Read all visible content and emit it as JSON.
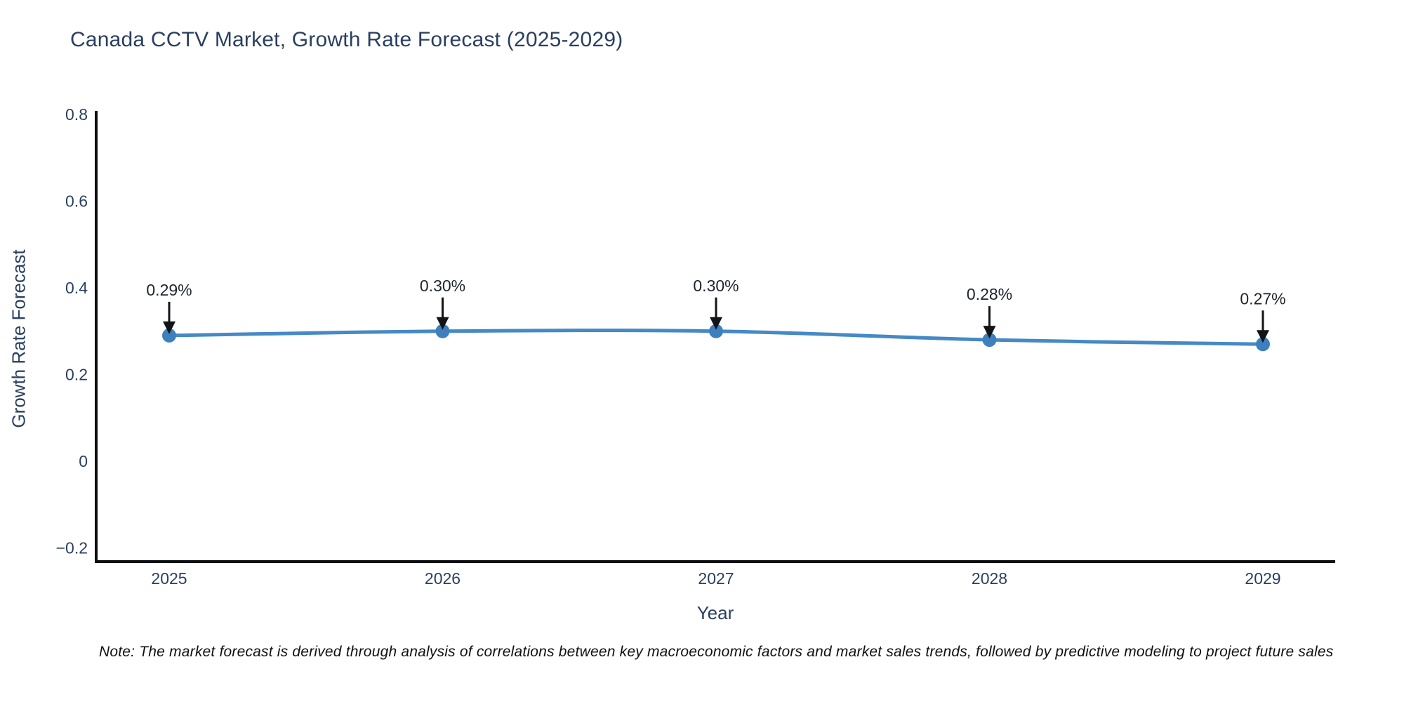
{
  "page": {
    "title": "Canada CCTV Market, Growth Rate Forecast (2025-2029)",
    "note": "Note: The market forecast is derived through analysis of correlations between key macroeconomic factors and market sales trends, followed by predictive modeling to project future sales"
  },
  "colors": {
    "background": "#ffffff",
    "title_text": "#2a3f5f",
    "tick_text": "#2a3f5f",
    "axis_line": "#0d0e12",
    "series_line": "#4589c5",
    "marker_fill": "#3e80bd",
    "arrow": "#121418",
    "annotation_text": "#1e242e",
    "note_text": "#111111"
  },
  "chart_data": {
    "type": "line",
    "title": "Canada CCTV Market, Growth Rate Forecast (2025-2029)",
    "x": [
      2025,
      2026,
      2027,
      2028,
      2029
    ],
    "categories": [
      "2025",
      "2026",
      "2027",
      "2028",
      "2029"
    ],
    "series": [
      {
        "name": "Growth Rate Forecast",
        "values": [
          0.29,
          0.3,
          0.3,
          0.28,
          0.27
        ],
        "point_labels": [
          "0.29%",
          "0.30%",
          "0.30%",
          "0.28%",
          "0.27%"
        ]
      }
    ],
    "xlabel": "Year",
    "ylabel": "Growth Rate Forecast",
    "ylim": [
      -0.233,
      0.8
    ],
    "yticks": [
      0.8,
      0.6,
      0.4,
      0.2,
      0,
      -0.2
    ],
    "ytick_labels": [
      "0.8",
      "0.6",
      "0.4",
      "0.2",
      "0",
      "−0.2"
    ],
    "grid": false,
    "legend_position": "none",
    "annotation_style": "black-arrow-down-to-point",
    "marker_style": "filled-circle"
  }
}
